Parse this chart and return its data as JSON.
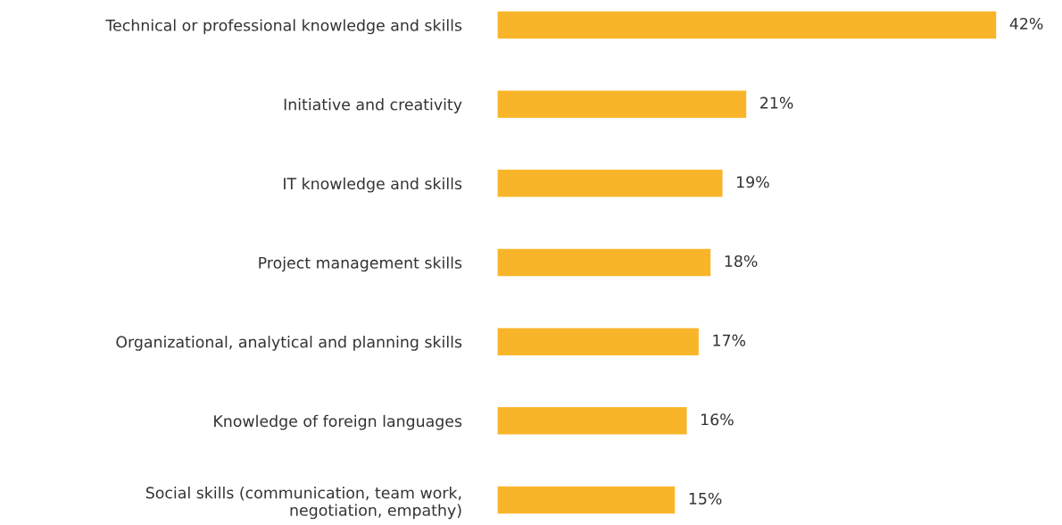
{
  "chart_data": {
    "type": "bar",
    "orientation": "horizontal",
    "categories": [
      "Technical or professional knowledge and skills",
      "Initiative and creativity",
      "IT knowledge and skills",
      "Project management skills",
      "Organizational, analytical and planning skills",
      "Knowledge of foreign languages",
      "Social skills (communication, team work,\nnegotiation, empathy)"
    ],
    "values": [
      42,
      21,
      19,
      18,
      17,
      16,
      15
    ],
    "value_labels": [
      "42%",
      "21%",
      "19%",
      "18%",
      "17%",
      "16%",
      "15%"
    ],
    "color": "#f9b52a",
    "grid": false,
    "legend": false
  }
}
